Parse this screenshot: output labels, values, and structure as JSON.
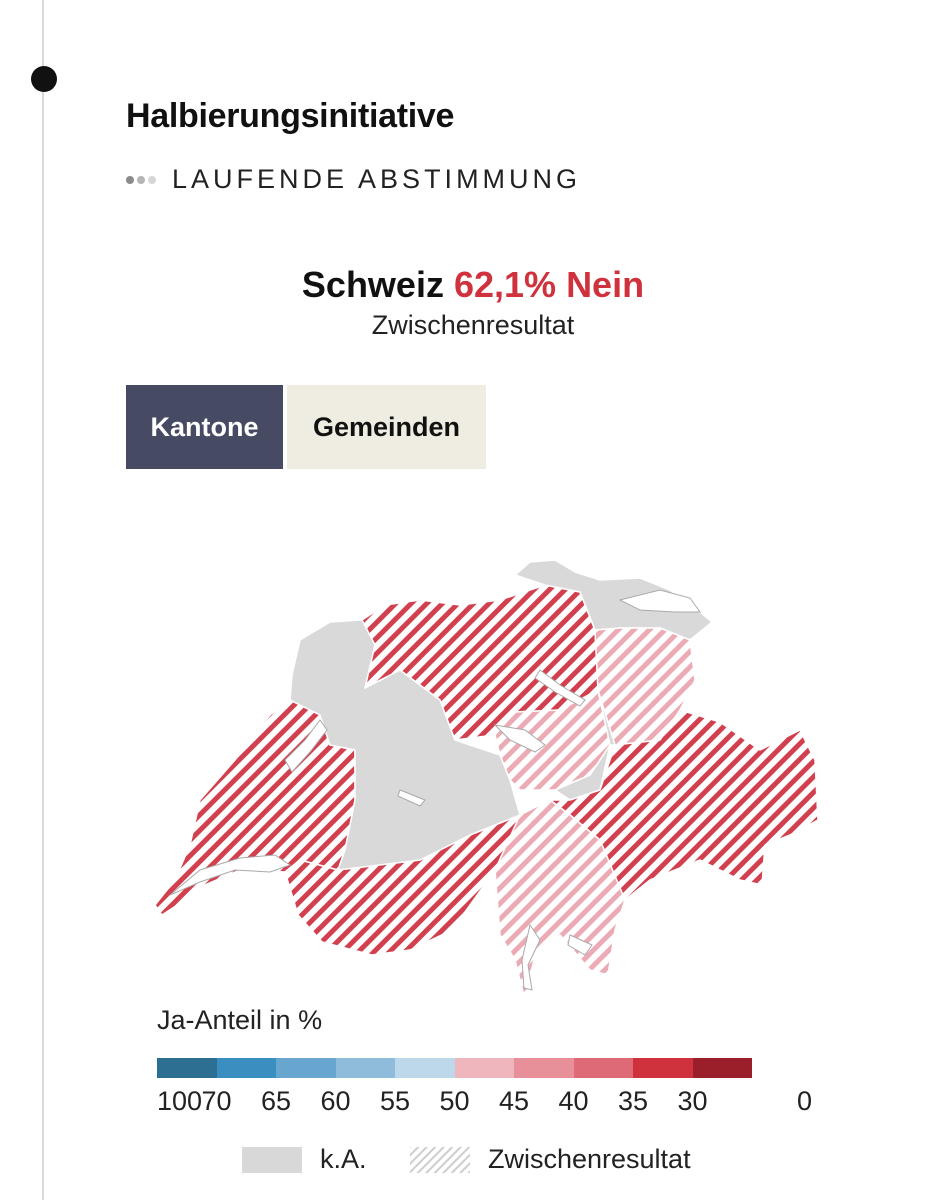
{
  "header": {
    "title": "Halbierungsinitiative",
    "status": "LAUFENDE ABSTIMMUNG"
  },
  "result": {
    "region": "Schweiz",
    "value": "62,1% Nein",
    "note": "Zwischenresultat"
  },
  "tabs": [
    {
      "label": "Kantone",
      "active": true
    },
    {
      "label": "Gemeinden",
      "active": false
    }
  ],
  "legend": {
    "title": "Ja-Anteil in %",
    "colors": [
      "#2d6e93",
      "#3b8fc0",
      "#69a6cf",
      "#90bcdc",
      "#bcd8ea",
      "#f0b6bd",
      "#e8909a",
      "#de6a76",
      "#d0323d",
      "#9b1f2b"
    ],
    "ticks": [
      "100",
      "70",
      "65",
      "60",
      "55",
      "50",
      "45",
      "40",
      "35",
      "30",
      "0"
    ],
    "no_data_label": "k.A.",
    "interim_label": "Zwischenresultat"
  },
  "map_colors": {
    "no_data": "#d9d9d9",
    "stripe_strong": "#d2404f",
    "stripe_medium": "#dc6f7c",
    "stripe_light": "#ecabb4"
  }
}
